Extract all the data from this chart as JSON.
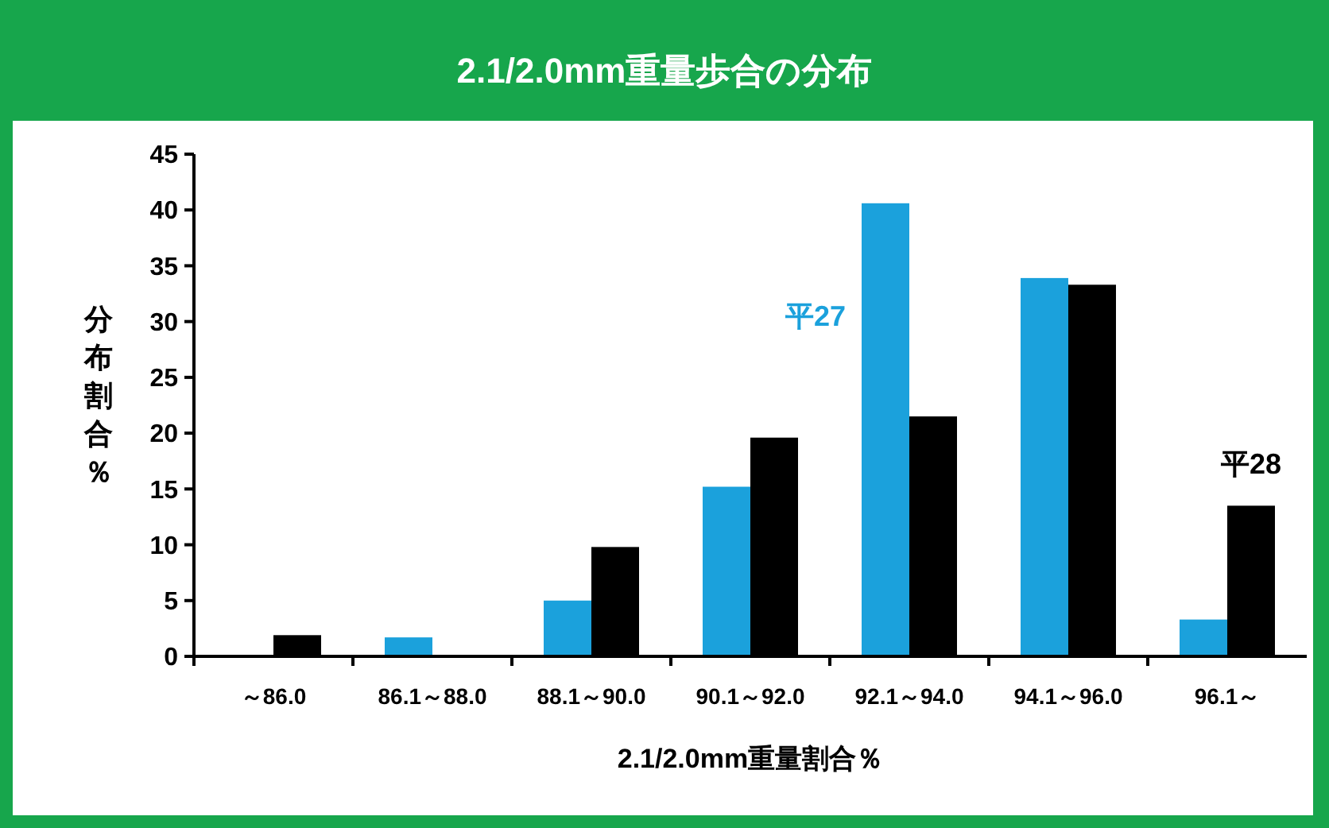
{
  "chart_data": {
    "type": "bar",
    "title": "2.1/2.0mm重量歩合の分布",
    "xlabel": "2.1/2.0mm重量割合％",
    "ylabel": "分布割合％",
    "categories": [
      "～86.0",
      "86.1～88.0",
      "88.1～90.0",
      "90.1～92.0",
      "92.1～94.0",
      "94.1～96.0",
      "96.1～"
    ],
    "series": [
      {
        "name": "平27",
        "color": "#1ba1dc",
        "values": [
          0,
          1.7,
          5.0,
          15.2,
          40.6,
          33.9,
          3.3
        ]
      },
      {
        "name": "平28",
        "color": "#000000",
        "values": [
          1.9,
          0,
          9.8,
          19.6,
          21.5,
          33.3,
          13.5
        ]
      }
    ],
    "ylim": [
      0,
      45
    ],
    "yticks": [
      0,
      5,
      10,
      15,
      20,
      25,
      30,
      35,
      40,
      45
    ],
    "grid": false
  }
}
